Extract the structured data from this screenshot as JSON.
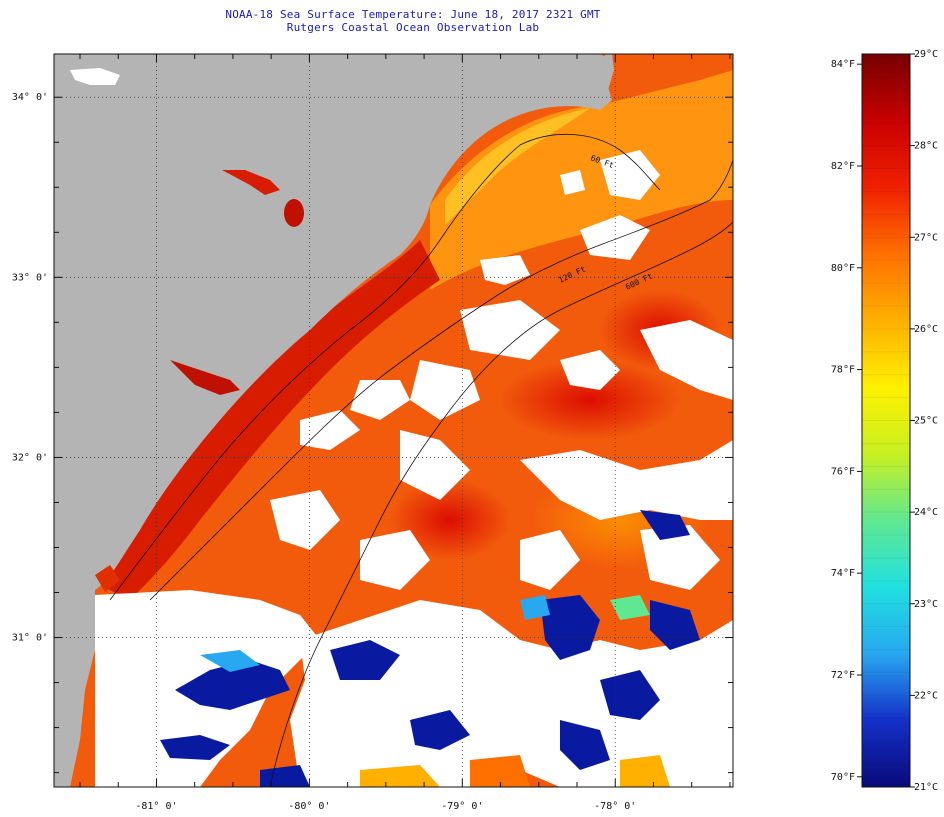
{
  "title": {
    "line1": "NOAA-18 Sea Surface Temperature:  June 18, 2017 2321 GMT",
    "line2": "Rutgers Coastal Ocean Observation Lab"
  },
  "map": {
    "lon_range": [
      -81.67,
      -77.23
    ],
    "lat_range": [
      30.17,
      34.24
    ],
    "lon_ticks": [
      {
        "value": -81,
        "label": "-81° 0'"
      },
      {
        "value": -80,
        "label": "-80° 0'"
      },
      {
        "value": -79,
        "label": "-79° 0'"
      },
      {
        "value": -78,
        "label": "-78° 0'"
      }
    ],
    "lat_ticks": [
      {
        "value": 34,
        "label": "34° 0'"
      },
      {
        "value": 33,
        "label": "33° 0'"
      },
      {
        "value": 32,
        "label": "32° 0'"
      },
      {
        "value": 31,
        "label": "31° 0'"
      }
    ],
    "contour_labels": [
      "120 Ft",
      "600 Ft",
      "60 Ft"
    ],
    "colors": {
      "land": "#b4b4b4",
      "cloud": "#ffffff",
      "warm": "#ee4400",
      "coastal": "#cc1100",
      "cool": "#0a1aa0"
    }
  },
  "colorbar": {
    "celsius_labels": [
      "29°C",
      "28°C",
      "27°C",
      "26°C",
      "25°C",
      "24°C",
      "23°C",
      "22°C",
      "21°C"
    ],
    "fahrenheit_labels": [
      "84°F",
      "82°F",
      "80°F",
      "78°F",
      "76°F",
      "74°F",
      "72°F",
      "70°F"
    ],
    "range_c": [
      21,
      29
    ],
    "colors": [
      "#0a0a7a",
      "#1430c8",
      "#28a8f0",
      "#20e0e0",
      "#60e890",
      "#c8f020",
      "#fff000",
      "#ffb000",
      "#ff7000",
      "#f02000",
      "#c80000",
      "#780000"
    ]
  }
}
